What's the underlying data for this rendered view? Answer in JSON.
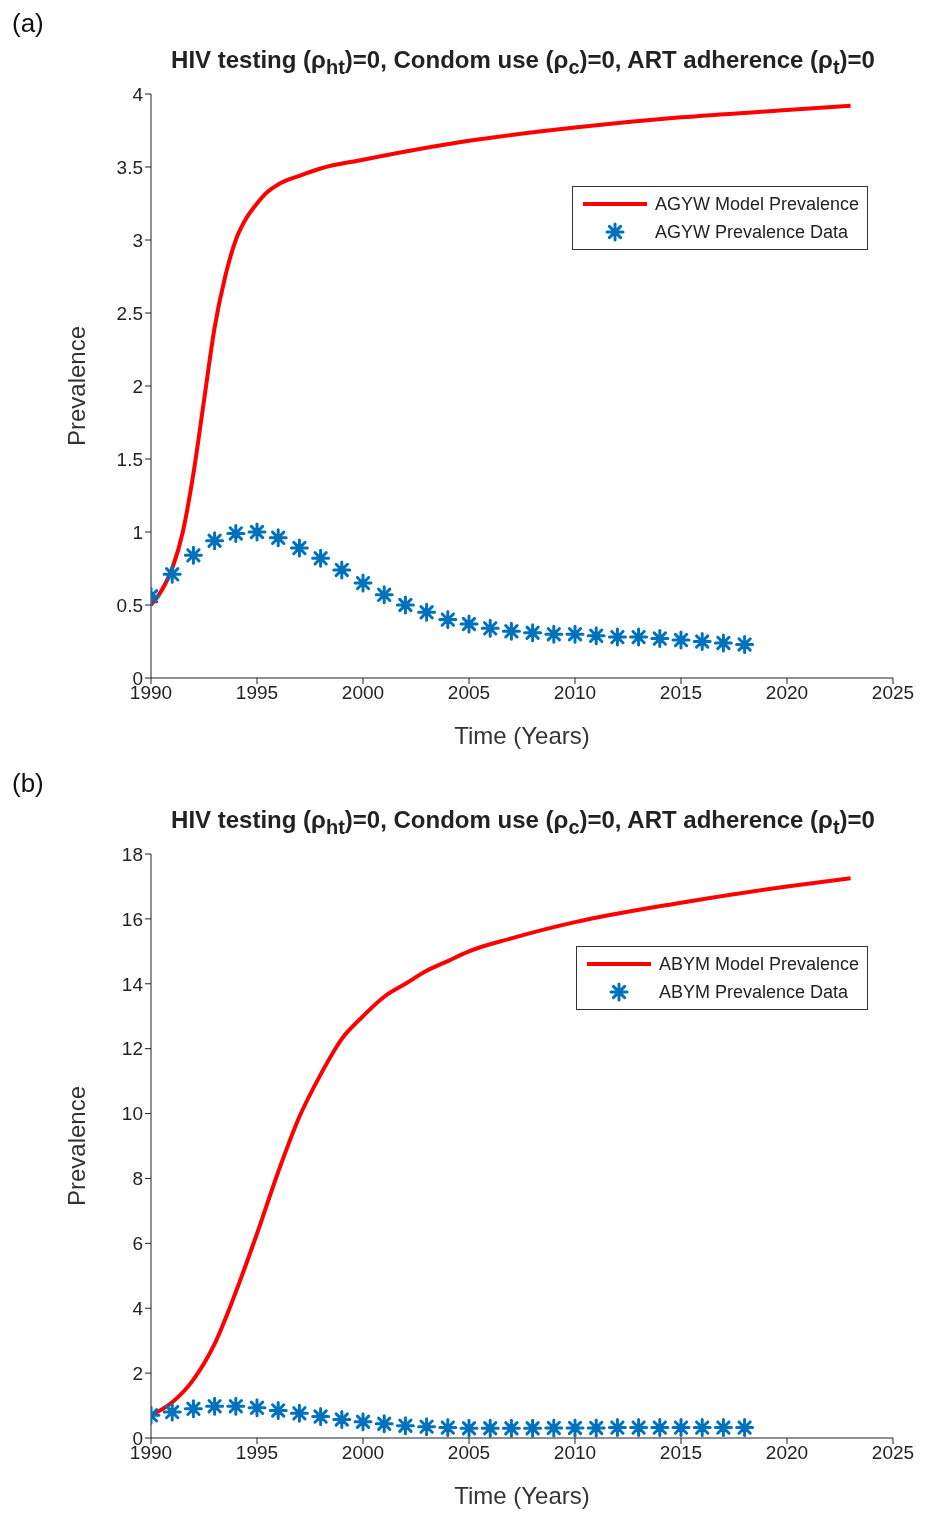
{
  "chart_data": [
    {
      "type": "line",
      "title": "HIV testing (ρ$_{ht}$)=0, Condom use (ρ$_{c}$)=0, ART adherence (ρ$_{t}$)=0",
      "xlabel": "Time (Years)",
      "ylabel": "Prevalence",
      "annotations": [
        "(a)"
      ],
      "xlim": [
        1990,
        2025
      ],
      "xticks": [
        1990,
        1995,
        2000,
        2005,
        2010,
        2015,
        2020,
        2025
      ],
      "ylim": [
        0,
        4
      ],
      "yticks": [
        0,
        0.5,
        1,
        1.5,
        2,
        2.5,
        3,
        3.5,
        4
      ],
      "grid": false,
      "legend": "top right",
      "series": [
        {
          "name": "AGYW Model Prevalence",
          "type": "line",
          "color": "#ff0000",
          "marker": "none",
          "x": [
            1990,
            1990.5,
            1991,
            1991.5,
            1992,
            1992.5,
            1993,
            1993.5,
            1994,
            1994.5,
            1995,
            1995.5,
            1996,
            1997,
            1998,
            2000,
            2005,
            2010,
            2015,
            2020,
            2023
          ],
          "values": [
            0.5,
            0.6,
            0.75,
            1.0,
            1.4,
            1.9,
            2.4,
            2.75,
            3.0,
            3.15,
            3.25,
            3.33,
            3.38,
            3.44,
            3.49,
            3.55,
            3.68,
            3.77,
            3.84,
            3.89,
            3.92
          ]
        },
        {
          "name": "AGYW Prevalence Data",
          "type": "scatter",
          "color": "#0072bd",
          "marker": "cross",
          "x": [
            1990,
            1991,
            1992,
            1993,
            1994,
            1995,
            1996,
            1997,
            1998,
            1999,
            2000,
            2001,
            2002,
            2003,
            2004,
            2005,
            2006,
            2007,
            2008,
            2009,
            2010,
            2011,
            2012,
            2013,
            2014,
            2015,
            2016,
            2017,
            2018
          ],
          "values": [
            0.56,
            0.71,
            0.84,
            0.94,
            0.99,
            1.0,
            0.96,
            0.89,
            0.82,
            0.74,
            0.65,
            0.57,
            0.5,
            0.45,
            0.4,
            0.37,
            0.34,
            0.32,
            0.31,
            0.3,
            0.3,
            0.29,
            0.28,
            0.28,
            0.27,
            0.26,
            0.25,
            0.24,
            0.23
          ]
        }
      ]
    },
    {
      "type": "line",
      "title": "HIV testing (ρ$_{ht}$)=0, Condom use (ρ$_{c}$)=0, ART adherence (ρ$_{t}$)=0",
      "xlabel": "Time (Years)",
      "ylabel": "Prevalence",
      "annotations": [
        "(b)"
      ],
      "xlim": [
        1990,
        2025
      ],
      "xticks": [
        1990,
        1995,
        2000,
        2005,
        2010,
        2015,
        2020,
        2025
      ],
      "ylim": [
        0,
        18
      ],
      "yticks": [
        0,
        2,
        4,
        6,
        8,
        10,
        12,
        14,
        16,
        18
      ],
      "grid": false,
      "legend": "top right",
      "series": [
        {
          "name": "ABYM Model Prevalence",
          "type": "line",
          "color": "#ff0000",
          "marker": "none",
          "x": [
            1990,
            1991,
            1992,
            1993,
            1994,
            1995,
            1996,
            1997,
            1998,
            1999,
            2000,
            2001,
            2002,
            2003,
            2004,
            2005,
            2007,
            2010,
            2015,
            2020,
            2023
          ],
          "values": [
            0.7,
            1.1,
            1.8,
            2.9,
            4.5,
            6.3,
            8.2,
            9.9,
            11.2,
            12.3,
            13.0,
            13.6,
            14.0,
            14.4,
            14.7,
            15.0,
            15.4,
            15.9,
            16.5,
            17.0,
            17.25
          ]
        },
        {
          "name": "ABYM Prevalence Data",
          "type": "scatter",
          "color": "#0072bd",
          "marker": "cross",
          "x": [
            1990,
            1991,
            1992,
            1993,
            1994,
            1995,
            1996,
            1997,
            1998,
            1999,
            2000,
            2001,
            2002,
            2003,
            2004,
            2005,
            2006,
            2007,
            2008,
            2009,
            2010,
            2011,
            2012,
            2013,
            2014,
            2015,
            2016,
            2017,
            2018
          ],
          "values": [
            0.7,
            0.8,
            0.9,
            0.98,
            0.98,
            0.93,
            0.85,
            0.76,
            0.66,
            0.57,
            0.5,
            0.44,
            0.38,
            0.35,
            0.32,
            0.3,
            0.3,
            0.3,
            0.3,
            0.31,
            0.31,
            0.31,
            0.32,
            0.32,
            0.32,
            0.32,
            0.32,
            0.32,
            0.32
          ]
        }
      ]
    }
  ]
}
